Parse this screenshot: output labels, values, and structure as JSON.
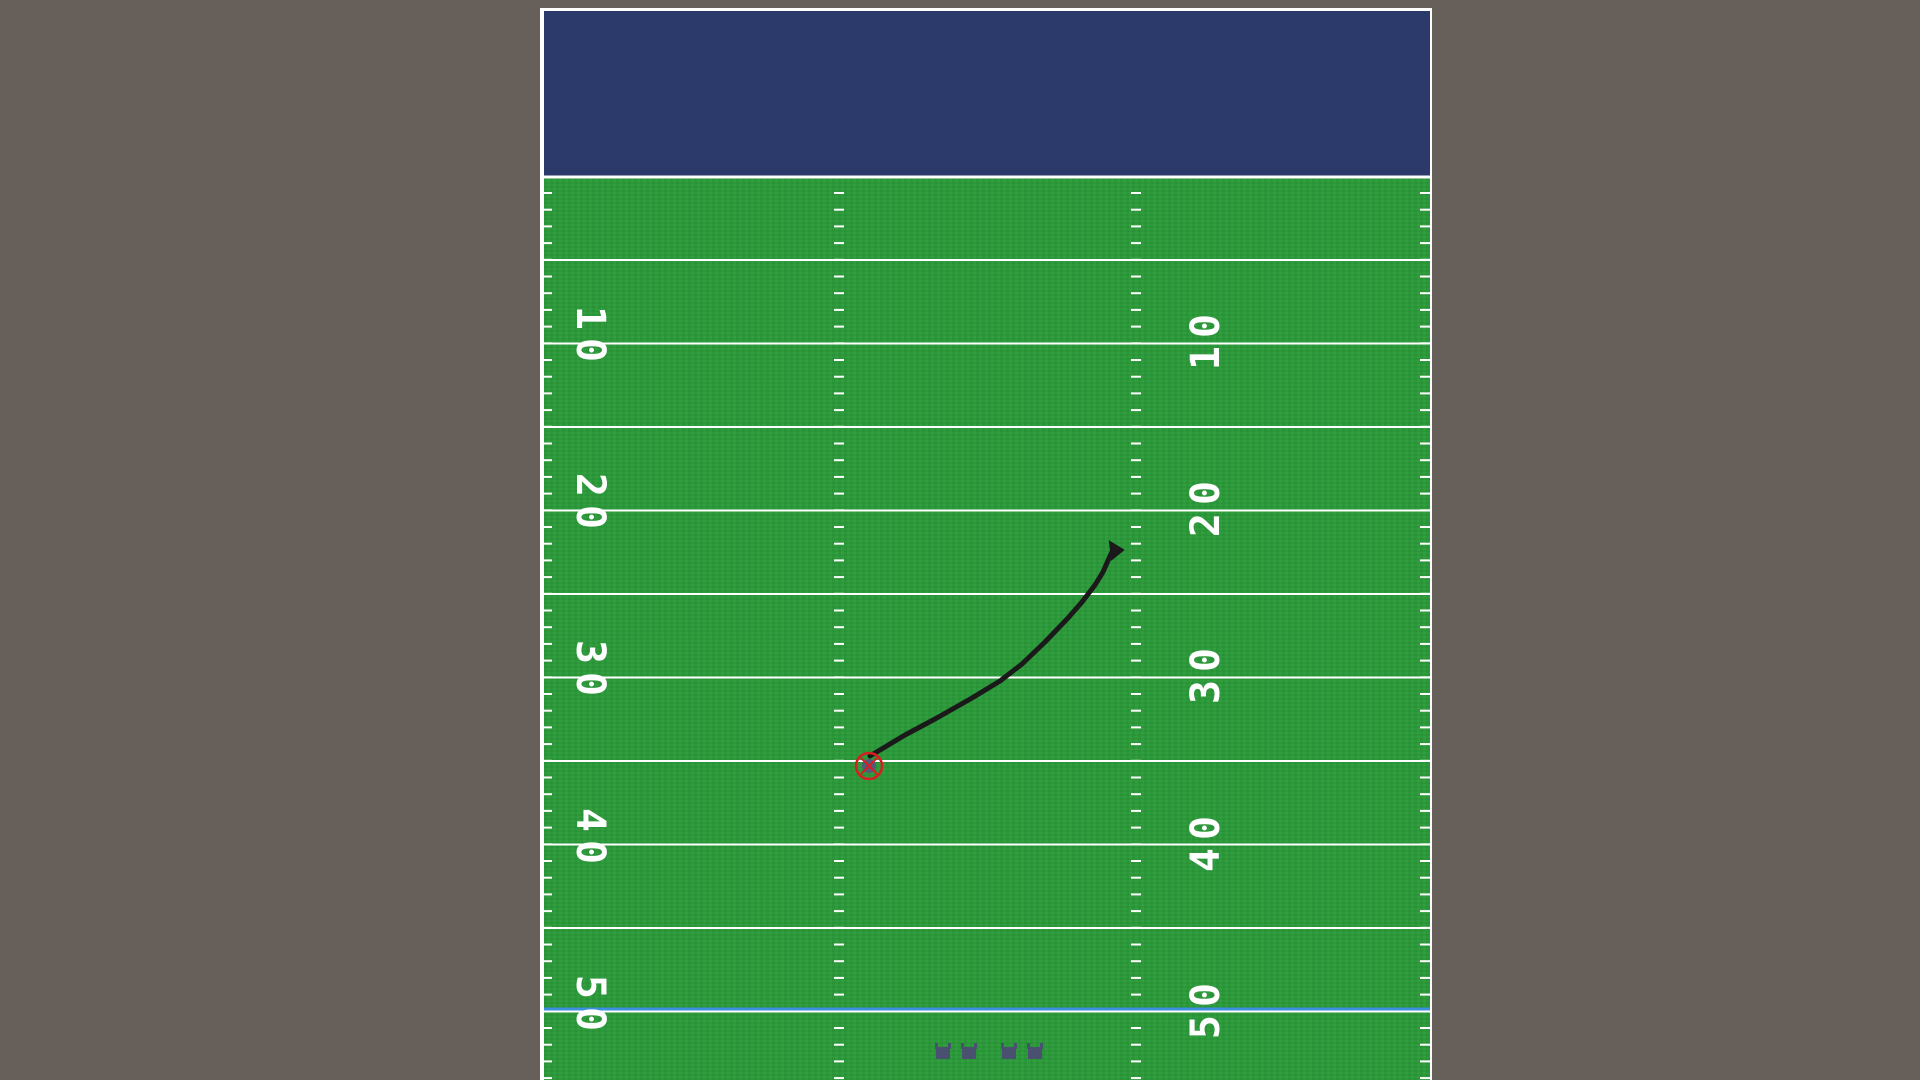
{
  "field": {
    "endzone_color": "#2b3a6b",
    "turf_color": "#2a9a38",
    "line_color": "#ffffff",
    "scrimmage_line_color": "#3b8fe0",
    "background_color": "#675f5a"
  },
  "yard_numbers": [
    "10",
    "20",
    "30",
    "40",
    "50"
  ],
  "players": {
    "selected_player_icon": "player-marker-icon",
    "formation_icons": [
      "player-icon",
      "player-icon",
      "player-icon",
      "player-icon"
    ]
  },
  "route": {
    "description_icon": "route-arrow-icon"
  }
}
